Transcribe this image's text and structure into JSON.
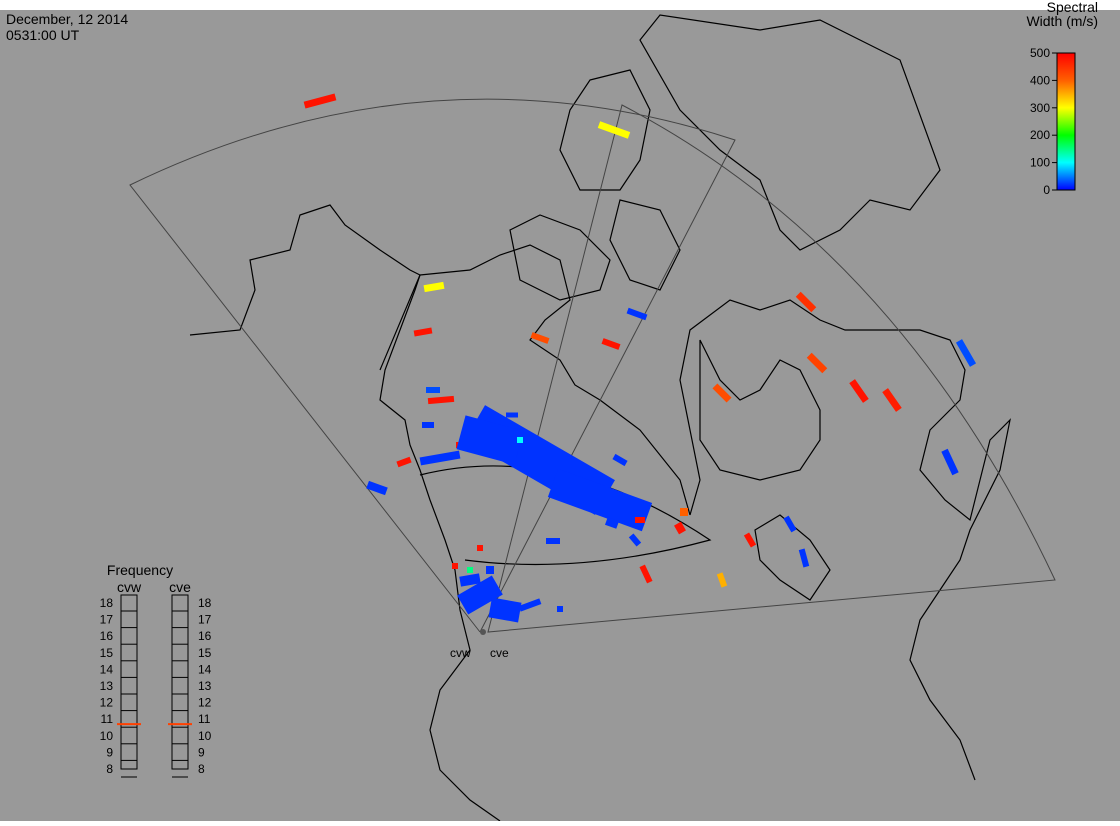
{
  "header": {
    "date": "December, 12 2014",
    "time": "0531:00 UT"
  },
  "colorbar": {
    "title": [
      "Spectral",
      "Width (m/s)"
    ],
    "range": [
      0,
      500
    ],
    "ticks": [
      0,
      100,
      200,
      300,
      400,
      500
    ]
  },
  "frequency": {
    "title": "Frequency",
    "range": [
      8,
      18
    ],
    "ticks": [
      8,
      9,
      10,
      11,
      12,
      13,
      14,
      15,
      16,
      17,
      18
    ],
    "radars": [
      {
        "name": "cvw",
        "value": 10.7
      },
      {
        "name": "cve",
        "value": 10.7
      }
    ]
  },
  "stations": [
    "cvw",
    "cve"
  ],
  "echoes": [
    480,
    300,
    300,
    480,
    420,
    480,
    450,
    20,
    420,
    430,
    480,
    470,
    30,
    30,
    480,
    20,
    20,
    20,
    480,
    480,
    480,
    150,
    20,
    20,
    20,
    480,
    480,
    20,
    20,
    20,
    20,
    480,
    350,
    480,
    20,
    20,
    20,
    20,
    20,
    150,
    100,
    20,
    480,
    480,
    20,
    20,
    20,
    20,
    400
  ]
}
